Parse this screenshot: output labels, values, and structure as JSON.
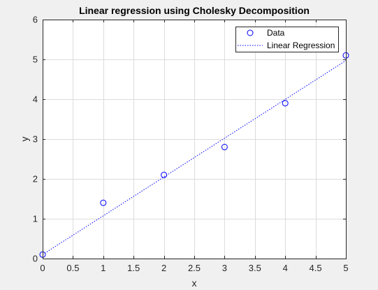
{
  "colors": {
    "figure_bg": "#f0f0f0",
    "axes_bg": "#ffffff",
    "grid": "#dcdcdc",
    "axis": "#262626",
    "series": "#0000ff"
  },
  "chart_data": {
    "type": "scatter",
    "title": "Linear regression using Cholesky Decomposition",
    "xlabel": "x",
    "ylabel": "y",
    "xlim": [
      0,
      5
    ],
    "ylim": [
      0,
      6
    ],
    "xticks": [
      "0",
      "0.5",
      "1",
      "1.5",
      "2",
      "2.5",
      "3",
      "3.5",
      "4",
      "4.5",
      "5"
    ],
    "yticks": [
      "0",
      "1",
      "2",
      "3",
      "4",
      "5",
      "6"
    ],
    "grid": true,
    "legend_position": "top-right",
    "series": [
      {
        "name": "Data",
        "type": "scatter",
        "marker": "circle",
        "x": [
          0,
          1,
          2,
          3,
          4,
          5
        ],
        "y": [
          0.1,
          1.4,
          2.1,
          2.8,
          3.9,
          5.1
        ]
      },
      {
        "name": "Linear Regression",
        "type": "line",
        "style": "dotted",
        "x": [
          0,
          5
        ],
        "y": [
          0.1,
          4.97
        ]
      }
    ]
  }
}
